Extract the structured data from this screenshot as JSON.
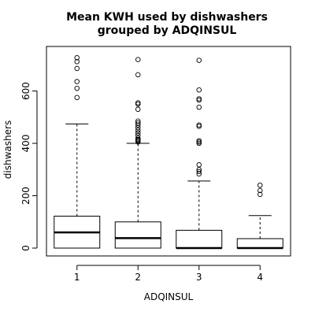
{
  "chart_data": {
    "type": "box",
    "title": [
      "Mean KWH used by dishwashers",
      "grouped by ADQINSUL"
    ],
    "xlabel": "ADQINSUL",
    "ylabel": "dishwashers",
    "categories": [
      "1",
      "2",
      "3",
      "4"
    ],
    "y_ticks": [
      0,
      200,
      400,
      600
    ],
    "ylim": [
      -30,
      770
    ],
    "grid": false,
    "boxes": [
      {
        "category": "1",
        "q1": 0,
        "median": 60,
        "q3": 122,
        "whisker_low": 0,
        "whisker_high": 474,
        "outliers": [
          575,
          610,
          636,
          686,
          712,
          727
        ]
      },
      {
        "category": "2",
        "q1": 0,
        "median": 38,
        "q3": 100,
        "whisker_low": 0,
        "whisker_high": 400,
        "outliers": [
          405,
          410,
          412,
          415,
          420,
          430,
          440,
          450,
          460,
          470,
          478,
          485,
          530,
          550,
          555,
          662,
          720
        ]
      },
      {
        "category": "3",
        "q1": 0,
        "median": 0,
        "q3": 68,
        "whisker_low": 0,
        "whisker_high": 256,
        "outliers": [
          283,
          292,
          300,
          318,
          400,
          405,
          410,
          465,
          470,
          538,
          565,
          570,
          604,
          717
        ]
      },
      {
        "category": "4",
        "q1": 0,
        "median": 0,
        "q3": 36,
        "whisker_low": 0,
        "whisker_high": 124,
        "outliers": [
          205,
          220,
          240
        ]
      }
    ]
  }
}
